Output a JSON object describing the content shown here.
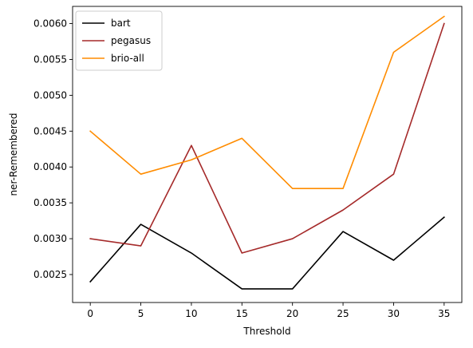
{
  "chart_data": {
    "type": "line",
    "title": "",
    "xlabel": "Threshold",
    "ylabel": "ner-Remembered",
    "x": [
      0,
      5,
      10,
      15,
      20,
      25,
      30,
      35
    ],
    "xticks": [
      "0",
      "5",
      "10",
      "15",
      "20",
      "25",
      "30",
      "35"
    ],
    "yticks": [
      "0.0025",
      "0.0030",
      "0.0035",
      "0.0040",
      "0.0045",
      "0.0050",
      "0.0055",
      "0.0060"
    ],
    "xlim": [
      -1.75,
      36.75
    ],
    "ylim": [
      0.00211,
      0.00624
    ],
    "grid": false,
    "legend_position": "top-left",
    "series": [
      {
        "name": "bart",
        "color": "#000000",
        "values": [
          0.0024,
          0.0032,
          0.0028,
          0.0023,
          0.0023,
          0.0031,
          0.0027,
          0.0033
        ]
      },
      {
        "name": "pegasus",
        "color": "#a52a2a",
        "values": [
          0.003,
          0.0029,
          0.0043,
          0.0028,
          0.003,
          0.0034,
          0.0039,
          0.006
        ]
      },
      {
        "name": "brio-all",
        "color": "#ff8c00",
        "values": [
          0.0045,
          0.0039,
          0.0041,
          0.0044,
          0.0037,
          0.0037,
          0.0056,
          0.0061
        ]
      }
    ]
  }
}
